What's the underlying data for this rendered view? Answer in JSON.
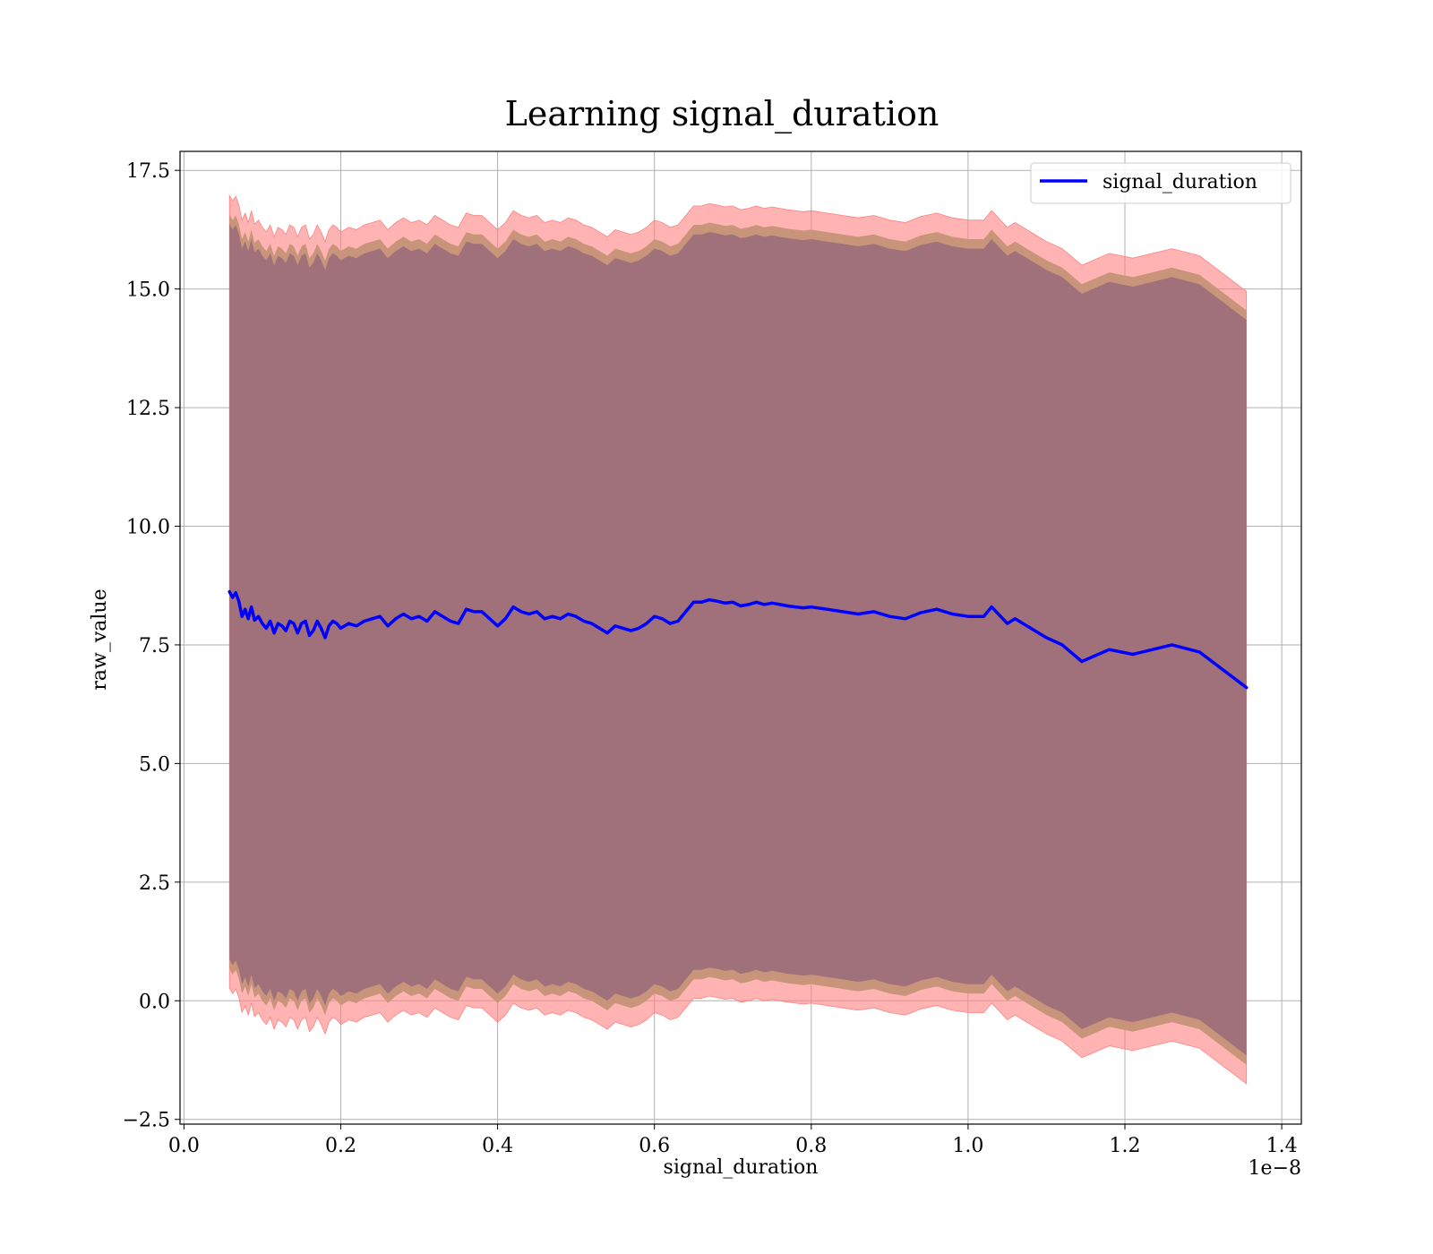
{
  "chart_data": {
    "type": "line",
    "title": "Learning signal_duration",
    "xlabel": "signal_duration",
    "ylabel": "raw_value",
    "x_offset_label": "1e−8",
    "xlim": [
      -0.005,
      1.425
    ],
    "ylim": [
      -2.6,
      17.9
    ],
    "x_ticks": [
      0.0,
      0.2,
      0.4,
      0.6,
      0.8,
      1.0,
      1.2,
      1.4
    ],
    "x_tick_labels": [
      "0.0",
      "0.2",
      "0.4",
      "0.6",
      "0.8",
      "1.0",
      "1.2",
      "1.4"
    ],
    "y_ticks": [
      -2.5,
      0.0,
      2.5,
      5.0,
      7.5,
      10.0,
      12.5,
      15.0,
      17.5
    ],
    "y_tick_labels": [
      "−2.5",
      "0.0",
      "2.5",
      "5.0",
      "7.5",
      "10.0",
      "12.5",
      "15.0",
      "17.5"
    ],
    "grid": true,
    "legend": {
      "position": "top-right",
      "entries": [
        "signal_duration"
      ]
    },
    "colors": {
      "line": "#0000ff",
      "band_outer": "#ff8080",
      "band_middle": "#c8957a",
      "band_inner": "#a0717a",
      "grid": "#b0b0b0"
    },
    "series": [
      {
        "name": "signal_duration",
        "x": [
          0.058,
          0.062,
          0.066,
          0.07,
          0.074,
          0.078,
          0.082,
          0.086,
          0.09,
          0.095,
          0.1,
          0.105,
          0.11,
          0.115,
          0.12,
          0.125,
          0.13,
          0.135,
          0.14,
          0.145,
          0.15,
          0.155,
          0.16,
          0.165,
          0.17,
          0.175,
          0.18,
          0.185,
          0.19,
          0.195,
          0.2,
          0.21,
          0.22,
          0.23,
          0.24,
          0.25,
          0.26,
          0.27,
          0.28,
          0.29,
          0.3,
          0.31,
          0.32,
          0.33,
          0.34,
          0.35,
          0.36,
          0.37,
          0.38,
          0.39,
          0.4,
          0.41,
          0.42,
          0.43,
          0.44,
          0.45,
          0.46,
          0.47,
          0.48,
          0.49,
          0.5,
          0.51,
          0.52,
          0.53,
          0.54,
          0.55,
          0.56,
          0.57,
          0.58,
          0.59,
          0.6,
          0.61,
          0.62,
          0.63,
          0.64,
          0.65,
          0.66,
          0.67,
          0.68,
          0.69,
          0.7,
          0.71,
          0.72,
          0.73,
          0.74,
          0.75,
          0.76,
          0.77,
          0.78,
          0.79,
          0.8,
          0.82,
          0.84,
          0.86,
          0.88,
          0.9,
          0.92,
          0.94,
          0.96,
          0.98,
          1.0,
          1.02,
          1.03,
          1.05,
          1.06,
          1.08,
          1.1,
          1.12,
          1.145,
          1.18,
          1.21,
          1.26,
          1.295,
          1.355
        ],
        "values": [
          8.62,
          8.5,
          8.6,
          8.42,
          8.1,
          8.25,
          8.05,
          8.3,
          8.02,
          8.1,
          7.95,
          7.85,
          8.0,
          7.75,
          7.95,
          7.9,
          7.8,
          8.0,
          7.95,
          7.75,
          7.95,
          8.0,
          7.7,
          7.8,
          8.0,
          7.85,
          7.65,
          7.9,
          8.0,
          7.95,
          7.85,
          7.95,
          7.9,
          8.0,
          8.05,
          8.1,
          7.9,
          8.05,
          8.15,
          8.05,
          8.1,
          8.0,
          8.2,
          8.1,
          8.0,
          7.95,
          8.25,
          8.2,
          8.2,
          8.05,
          7.9,
          8.05,
          8.3,
          8.2,
          8.15,
          8.2,
          8.05,
          8.1,
          8.05,
          8.15,
          8.1,
          8.0,
          7.95,
          7.85,
          7.75,
          7.9,
          7.85,
          7.8,
          7.85,
          7.95,
          8.1,
          8.05,
          7.95,
          8.0,
          8.2,
          8.4,
          8.4,
          8.45,
          8.42,
          8.38,
          8.4,
          8.32,
          8.35,
          8.4,
          8.35,
          8.38,
          8.35,
          8.32,
          8.3,
          8.28,
          8.3,
          8.25,
          8.2,
          8.15,
          8.2,
          8.1,
          8.05,
          8.18,
          8.25,
          8.15,
          8.1,
          8.1,
          8.3,
          7.95,
          8.05,
          7.85,
          7.65,
          7.5,
          7.15,
          7.4,
          7.3,
          7.5,
          7.35,
          6.6
        ],
        "band_outer_half_width": 8.35,
        "band_middle_half_width": 7.95,
        "band_inner_half_width": 7.75
      }
    ]
  }
}
